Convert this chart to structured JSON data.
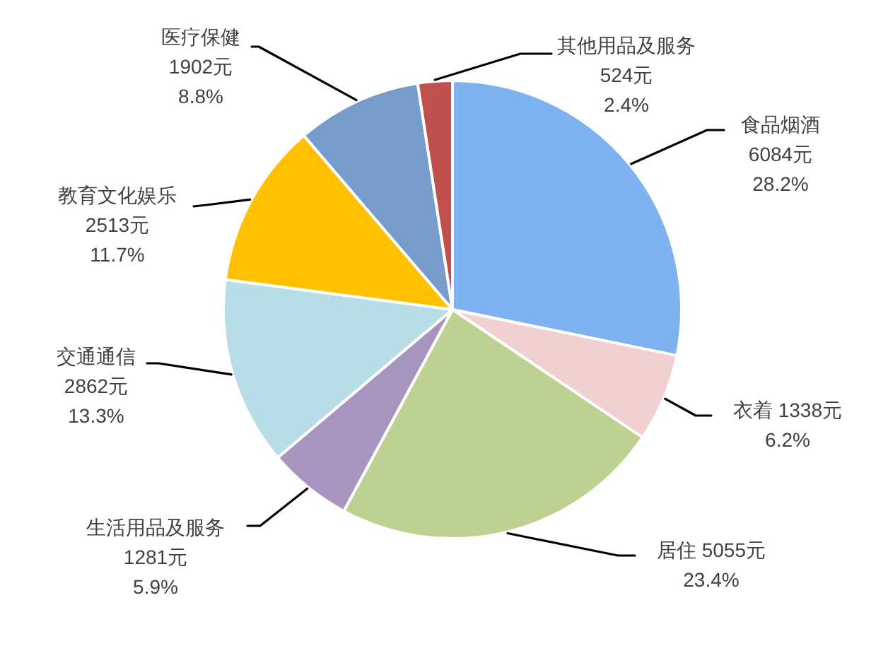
{
  "chart_data": {
    "type": "pie",
    "categories": [
      "食品烟酒",
      "衣着",
      "居住",
      "生活用品及服务",
      "交通通信",
      "教育文化娱乐",
      "医疗保健",
      "其他用品及服务"
    ],
    "values": [
      6084,
      1338,
      5055,
      1281,
      2862,
      2513,
      1902,
      524
    ],
    "colors": [
      "#7fb2f0",
      "#f0d0d0",
      "#bcd192",
      "#a795c0",
      "#b8dde6",
      "#ffc000",
      "#779bcb",
      "#c0504d"
    ],
    "value_labels": [
      "6084元\n28.2%",
      "1338元\n6.2%",
      "5055元\n23.4%",
      "1281元\n5.9%",
      "2862元\n13.3%",
      "2513元\n11.7%",
      "1902元\n8.8%",
      "524元\n2.4%"
    ]
  }
}
